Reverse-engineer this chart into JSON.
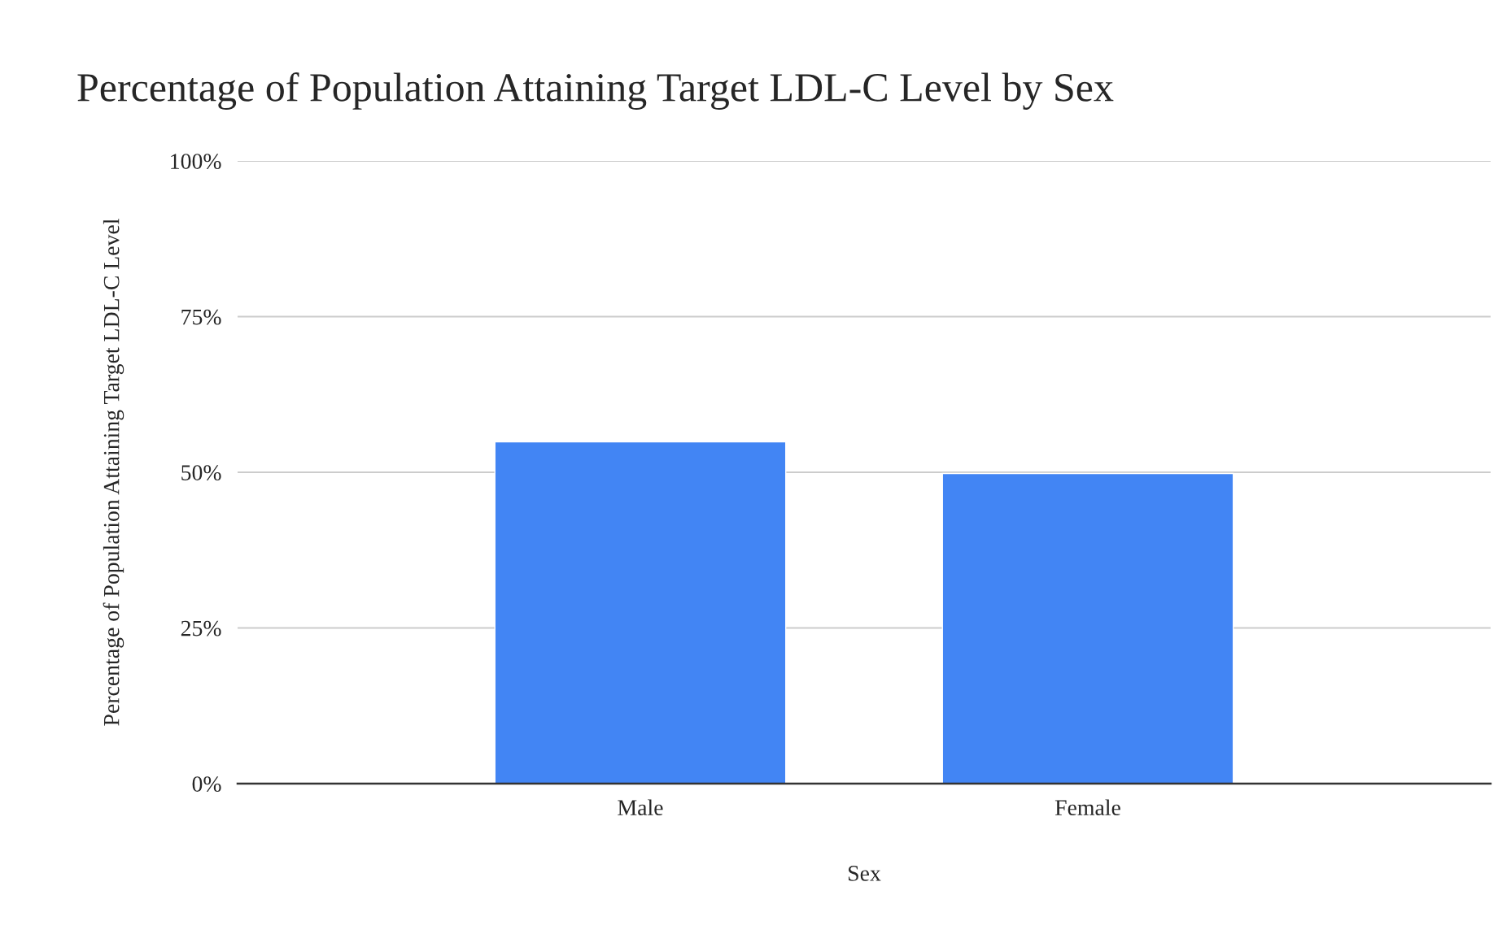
{
  "chart_data": {
    "type": "bar",
    "title": "Percentage of Population Attaining Target LDL-C Level by Sex",
    "xlabel": "Sex",
    "ylabel": "Percentage of Population Attaining Target LDL-C Level",
    "categories": [
      "Male",
      "Female"
    ],
    "values": [
      54.9,
      49.8
    ],
    "color": "#4285f4",
    "ylim": [
      0,
      100
    ],
    "yticks": [
      {
        "value": 0,
        "label": "0%"
      },
      {
        "value": 25,
        "label": "25%"
      },
      {
        "value": 50,
        "label": "50%"
      },
      {
        "value": 75,
        "label": "75%"
      },
      {
        "value": 100,
        "label": "100%"
      }
    ],
    "grid": "y",
    "legend": false
  }
}
